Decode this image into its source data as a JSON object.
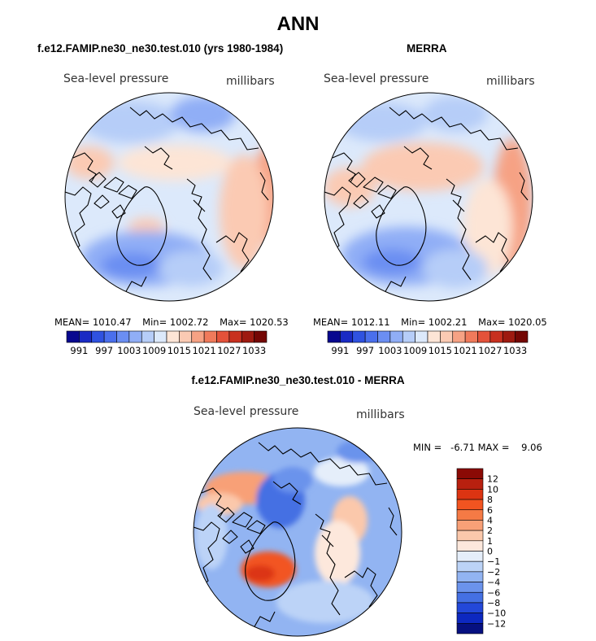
{
  "figure": {
    "title": "ANN",
    "panels": [
      {
        "heading": "f.e12.FAMIP.ne30_ne30.test.010 (yrs 1980-1984)",
        "variable": "Sea-level pressure",
        "units": "millibars",
        "mean_label": "MEAN=",
        "mean": "1010.47",
        "min_label": "Min=",
        "min": "1002.72",
        "max_label": "Max=",
        "max": "1020.53"
      },
      {
        "heading": "MERRA",
        "variable": "Sea-level pressure",
        "units": "millibars",
        "mean_label": "MEAN=",
        "mean": "1012.11",
        "min_label": "Min=",
        "min": "1002.21",
        "max_label": "Max=",
        "max": "1020.05"
      },
      {
        "heading": "f.e12.FAMIP.ne30_ne30.test.010 - MERRA",
        "variable": "Sea-level pressure",
        "units": "millibars",
        "stats": "MIN =   -6.71 MAX =    9.06"
      }
    ]
  },
  "chart_data": [
    {
      "type": "heatmap",
      "projection": "polar stereographic (north)",
      "title": "f.e12.FAMIP.ne30_ne30.test.010 (yrs 1980-1984)",
      "variable": "Sea-level pressure",
      "units": "millibars",
      "mean": 1010.47,
      "min": 1002.72,
      "max": 1020.53,
      "colorbar_levels": [
        991,
        994,
        997,
        1000,
        1003,
        1006,
        1009,
        1012,
        1015,
        1018,
        1021,
        1024,
        1027,
        1030,
        1033
      ],
      "colorbar_tick_labels": [
        "991",
        "997",
        "1003",
        "1009",
        "1015",
        "1021",
        "1027",
        "1033"
      ],
      "colorbar_colors": [
        "#08088f",
        "#1a2bc4",
        "#2f52e0",
        "#4a6fec",
        "#6b8ef2",
        "#90aef6",
        "#b6cdf8",
        "#dce9fb",
        "#fde5d6",
        "#fbcab3",
        "#f6a284",
        "#f07a5b",
        "#e4523a",
        "#c8301f",
        "#9e1a10",
        "#740704"
      ]
    },
    {
      "type": "heatmap",
      "projection": "polar stereographic (north)",
      "title": "MERRA",
      "variable": "Sea-level pressure",
      "units": "millibars",
      "mean": 1012.11,
      "min": 1002.21,
      "max": 1020.05,
      "colorbar_levels": [
        991,
        994,
        997,
        1000,
        1003,
        1006,
        1009,
        1012,
        1015,
        1018,
        1021,
        1024,
        1027,
        1030,
        1033
      ],
      "colorbar_tick_labels": [
        "991",
        "997",
        "1003",
        "1009",
        "1015",
        "1021",
        "1027",
        "1033"
      ],
      "colorbar_colors": [
        "#08088f",
        "#1a2bc4",
        "#2f52e0",
        "#4a6fec",
        "#6b8ef2",
        "#90aef6",
        "#b6cdf8",
        "#dce9fb",
        "#fde5d6",
        "#fbcab3",
        "#f6a284",
        "#f07a5b",
        "#e4523a",
        "#c8301f",
        "#9e1a10",
        "#740704"
      ]
    },
    {
      "type": "heatmap",
      "projection": "polar stereographic (north)",
      "title": "f.e12.FAMIP.ne30_ne30.test.010 - MERRA",
      "variable": "Sea-level pressure",
      "units": "millibars",
      "min": -6.71,
      "max": 9.06,
      "colorbar_levels": [
        -12,
        -10,
        -8,
        -6,
        -4,
        -2,
        -1,
        0,
        1,
        2,
        4,
        6,
        8,
        10,
        12
      ],
      "colorbar_tick_labels": [
        "12",
        "10",
        "8",
        "6",
        "4",
        "2",
        "1",
        "0",
        "−1",
        "−2",
        "−4",
        "−6",
        "−8",
        "−10",
        "−12"
      ],
      "colorbar_colors_top_to_bottom": [
        "#8b0a05",
        "#b8200f",
        "#dc3412",
        "#f25420",
        "#f57a45",
        "#f8a077",
        "#fbc8ab",
        "#fde8dc",
        "#e5eefa",
        "#bcd3f7",
        "#92b4f2",
        "#6b93ec",
        "#4470e3",
        "#2348d9",
        "#0d28c0",
        "#061080"
      ]
    }
  ]
}
